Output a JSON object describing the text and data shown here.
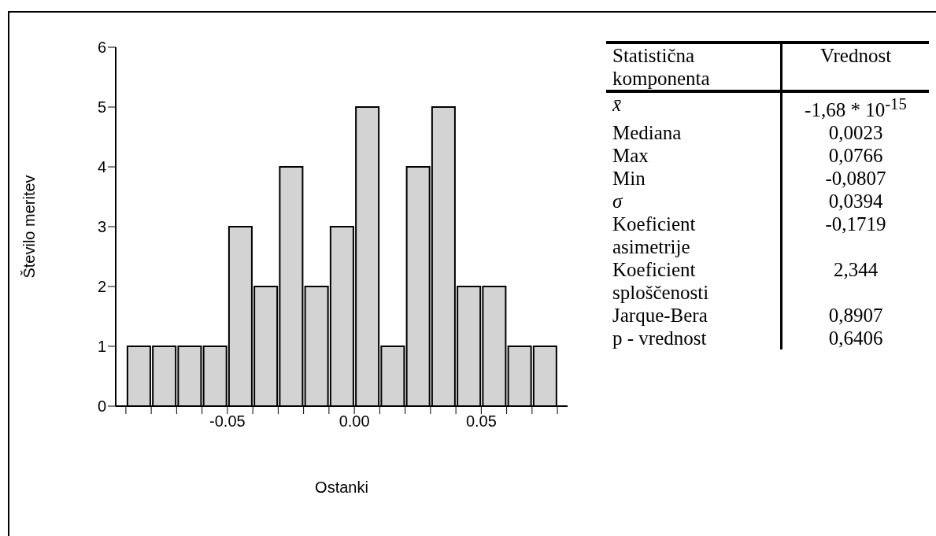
{
  "chart_data": [
    {
      "type": "histogram",
      "xlabel": "Ostanki",
      "ylabel": "Število meritev",
      "bins": [
        -0.09,
        -0.08,
        -0.07,
        -0.06,
        -0.05,
        -0.04,
        -0.03,
        -0.02,
        -0.01,
        0,
        0.01,
        0.02,
        0.03,
        0.04,
        0.05,
        0.06,
        0.07,
        0.08
      ],
      "values": [
        1,
        1,
        1,
        1,
        3,
        2,
        4,
        2,
        3,
        5,
        1,
        4,
        5,
        2,
        2,
        1,
        1
      ],
      "color": "#d3d3d3",
      "xlim": [
        -0.094,
        0.084
      ],
      "xticks": [
        {
          "value": -0.09,
          "label": null
        },
        {
          "value": -0.08,
          "label": null
        },
        {
          "value": -0.07,
          "label": null
        },
        {
          "value": -0.06,
          "label": null
        },
        {
          "value": -0.05,
          "label": "-0.05"
        },
        {
          "value": -0.04,
          "label": null
        },
        {
          "value": -0.03,
          "label": null
        },
        {
          "value": -0.02,
          "label": null
        },
        {
          "value": -0.01,
          "label": null
        },
        {
          "value": 0,
          "label": "0.00"
        },
        {
          "value": 0.01,
          "label": null
        },
        {
          "value": 0.02,
          "label": null
        },
        {
          "value": 0.03,
          "label": null
        },
        {
          "value": 0.04,
          "label": null
        },
        {
          "value": 0.05,
          "label": "0.05"
        },
        {
          "value": 0.06,
          "label": null
        },
        {
          "value": 0.07,
          "label": null
        },
        {
          "value": 0.08,
          "label": null
        }
      ],
      "ylim": [
        0,
        6
      ],
      "yticks": [
        0,
        1,
        2,
        3,
        4,
        5,
        6
      ]
    },
    {
      "type": "other",
      "annotations": [
        "Statistična komponenta",
        "Vrednost"
      ],
      "categories": [
        "x̄",
        "Mediana",
        "Max",
        "Min",
        "σ",
        "Koeficient asimetrije",
        "Koeficient sploščenosti",
        "Jarque-Bera",
        "p - vrednost"
      ],
      "value_labels": [
        "-1,68 * 10$^{-15}$",
        "0,0023",
        "0,0766",
        "-0,0807",
        "0,0394",
        "-0,1719",
        "2,344",
        "0,8907",
        "0,6406"
      ]
    }
  ]
}
